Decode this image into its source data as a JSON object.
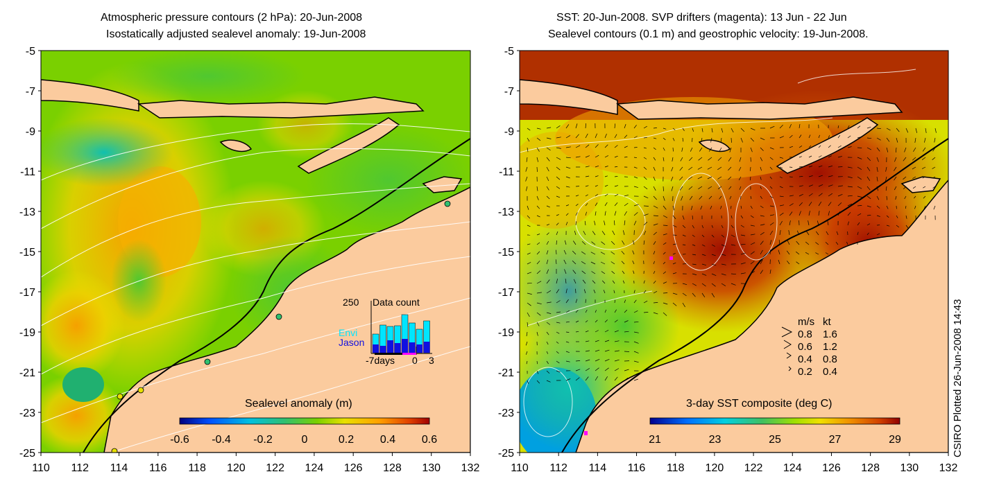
{
  "left_panel": {
    "title_line1": "Atmospheric pressure contours (2 hPa): 20-Jun-2008",
    "title_line2": "Isostatically adjusted sealevel anomaly: 19-Jun-2008",
    "colorbar_label": "Sealevel anomaly (m)",
    "colorbar_ticks": [
      "-0.6",
      "-0.4",
      "-0.2",
      "0",
      "0.2",
      "0.4",
      "0.6"
    ],
    "inset": {
      "count_label": "250",
      "title": "Data count",
      "series": [
        "Envi",
        "Jason"
      ],
      "series_colors": [
        "#00e5ff",
        "#1010e0"
      ],
      "x_labels": [
        "-7days",
        "0",
        "3"
      ]
    }
  },
  "right_panel": {
    "title_line1": "SST: 20-Jun-2008. SVP drifters (magenta): 13 Jun - 22 Jun",
    "title_line2": "Sealevel contours (0.1 m) and geostrophic velocity: 19-Jun-2008.",
    "colorbar_label": "3-day SST composite (deg C)",
    "colorbar_ticks": [
      "21",
      "23",
      "25",
      "27",
      "29"
    ],
    "velocity_legend": {
      "header_ms": "m/s",
      "header_kt": "kt",
      "rows": [
        {
          "ms": "0.8",
          "kt": "1.6"
        },
        {
          "ms": "0.6",
          "kt": "1.2"
        },
        {
          "ms": "0.4",
          "kt": "0.8"
        },
        {
          "ms": "0.2",
          "kt": "0.4"
        }
      ]
    }
  },
  "axes": {
    "lat_labels": [
      "-5",
      "-7",
      "-9",
      "-11",
      "-13",
      "-15",
      "-17",
      "-19",
      "-21",
      "-23",
      "-25"
    ],
    "lon_labels": [
      "110",
      "112",
      "114",
      "116",
      "118",
      "120",
      "122",
      "124",
      "126",
      "128",
      "130",
      "132"
    ]
  },
  "stamp": "CSIRO Plotted 26-Jun-2008 14:43",
  "colors": {
    "land": "#fbcb9e",
    "coast": "#000000",
    "contour": "#ffffff",
    "sla_ramp": [
      "#000080",
      "#0050ff",
      "#00c0e0",
      "#30c070",
      "#7ad000",
      "#e8e000",
      "#ffa000",
      "#e04000",
      "#a00000"
    ],
    "sst_ramp": [
      "#000090",
      "#0070ff",
      "#00d0e0",
      "#40c060",
      "#a0e000",
      "#f0e000",
      "#f09000",
      "#d04000",
      "#900000"
    ],
    "drifter": "#ff00ff"
  }
}
